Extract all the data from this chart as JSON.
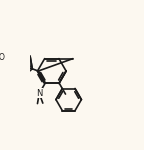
{
  "bg_color": "#fcf8f0",
  "line_color": "#1a1a1a",
  "lw": 1.2,
  "figsize": [
    1.44,
    1.5
  ],
  "dpi": 100
}
